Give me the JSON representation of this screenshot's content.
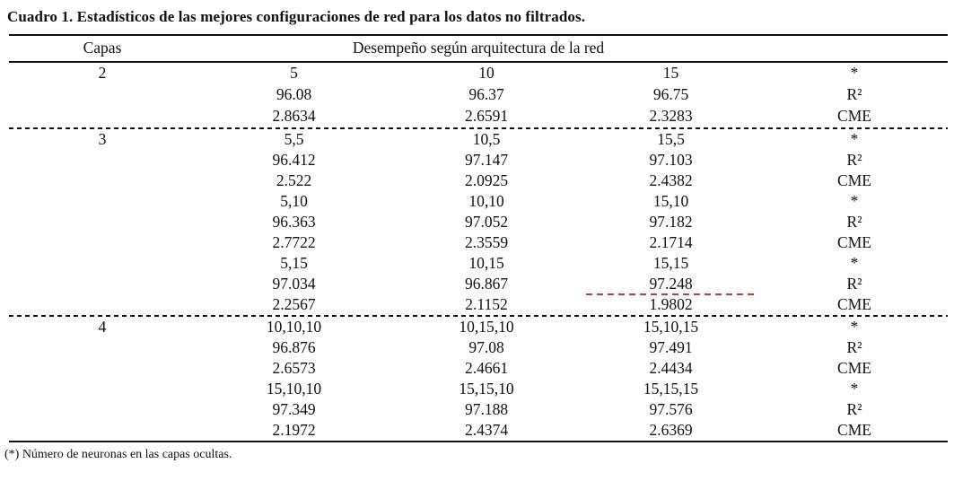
{
  "colors": {
    "text": "#111111",
    "rule": "#111111",
    "red_annotation": "#b8423a",
    "background": "#ffffff"
  },
  "table": {
    "title": "Cuadro 1. Estadísticos de las mejores configuraciones de red para los datos no filtrados.",
    "header": {
      "capas": "Capas",
      "desempeno": "Desempeño según arquitectura de la red"
    },
    "sections": [
      {
        "capas": "2",
        "rows": [
          {
            "c1": "5",
            "c2": "10",
            "c3": "15",
            "stat": "*"
          },
          {
            "c1": "96.08",
            "c2": "96.37",
            "c3": "96.75",
            "stat": "R²"
          },
          {
            "c1": "2.8634",
            "c2": "2.6591",
            "c3": "2.3283",
            "stat": "CME"
          }
        ]
      },
      {
        "capas": "3",
        "rows": [
          {
            "c1": "5,5",
            "c2": "10,5",
            "c3": "15,5",
            "stat": "*"
          },
          {
            "c1": "96.412",
            "c2": "97.147",
            "c3": "97.103",
            "stat": "R²"
          },
          {
            "c1": "2.522",
            "c2": "2.0925",
            "c3": "2.4382",
            "stat": "CME"
          },
          {
            "c1": "5,10",
            "c2": "10,10",
            "c3": "15,10",
            "stat": "*"
          },
          {
            "c1": "96.363",
            "c2": "97.052",
            "c3": "97.182",
            "stat": "R²"
          },
          {
            "c1": "2.7722",
            "c2": "2.3559",
            "c3": "2.1714",
            "stat": "CME"
          },
          {
            "c1": "5,15",
            "c2": "10,15",
            "c3": "15,15",
            "stat": "*"
          },
          {
            "c1": "97.034",
            "c2": "96.867",
            "c3": "97.248",
            "stat": "R²"
          },
          {
            "c1": "2.2567",
            "c2": "2.1152",
            "c3": "1.9802",
            "stat": "CME"
          }
        ]
      },
      {
        "capas": "4",
        "rows": [
          {
            "c1": "10,10,10",
            "c2": "10,15,10",
            "c3": "15,10,15",
            "stat": "*"
          },
          {
            "c1": "96.876",
            "c2": "97.08",
            "c3": "97.491",
            "stat": "R²"
          },
          {
            "c1": "2.6573",
            "c2": "2.4661",
            "c3": "2.4434",
            "stat": "CME"
          },
          {
            "c1": "15,10,10",
            "c2": "15,15,10",
            "c3": "15,15,15",
            "stat": "*"
          },
          {
            "c1": "97.349",
            "c2": "97.188",
            "c3": "97.576",
            "stat": "R²"
          },
          {
            "c1": "2.1972",
            "c2": "2.4374",
            "c3": "2.6369",
            "stat": "CME"
          }
        ]
      }
    ],
    "footnote": "(*) Número de neuronas en las capas ocultas."
  }
}
